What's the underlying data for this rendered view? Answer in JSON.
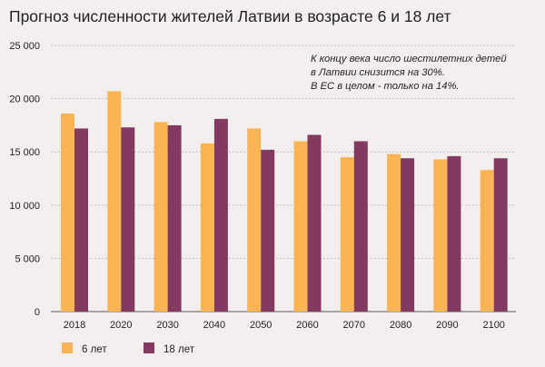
{
  "chart_data": {
    "type": "bar",
    "title": "Прогноз численности жителей Латвии в возрасте 6 и 18 лет",
    "xlabel": "",
    "ylabel": "",
    "categories": [
      "2018",
      "2020",
      "2030",
      "2040",
      "2050",
      "2060",
      "2070",
      "2080",
      "2090",
      "2100"
    ],
    "series": [
      {
        "name": "6 лет",
        "color": "#fbb454",
        "values": [
          18600,
          20700,
          17800,
          15800,
          17200,
          16000,
          14500,
          14800,
          14300,
          13300
        ]
      },
      {
        "name": "18 лет",
        "color": "#833a61",
        "values": [
          17200,
          17300,
          17500,
          18100,
          15200,
          16600,
          16000,
          14400,
          14600,
          14400
        ]
      }
    ],
    "ylim": [
      0,
      25000
    ],
    "yticks": [
      0,
      5000,
      10000,
      15000,
      20000,
      25000
    ],
    "ytick_labels": [
      "0",
      "5 000",
      "10 000",
      "15 000",
      "20 000",
      "25 000"
    ],
    "grid": true,
    "legend_position": "bottom-left",
    "annotation": [
      "К концу века число шестилетних детей",
      "в Латвии снизится на 30%.",
      "В ЕС в целом - только на 14%."
    ]
  }
}
